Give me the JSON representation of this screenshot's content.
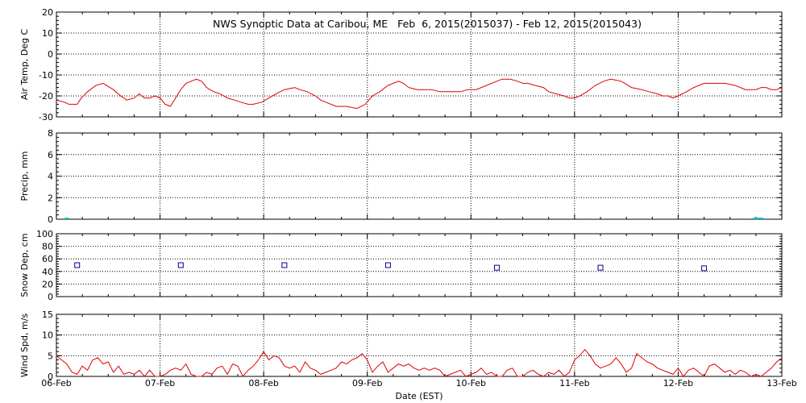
{
  "chart_data": {
    "type": "line",
    "title": "NWS Synoptic Data at Caribou, ME   Feb  6, 2015(2015037) - Feb 12, 2015(2015043)",
    "xlabel": "Date (EST)",
    "x_tick_labels": [
      "06-Feb",
      "07-Feb",
      "08-Feb",
      "09-Feb",
      "10-Feb",
      "11-Feb",
      "12-Feb",
      "13-Feb"
    ],
    "x_range_days": [
      0,
      7
    ],
    "panels": [
      {
        "id": "air-temp",
        "ylabel": "Air Temp, Deg C",
        "ylim": [
          -30,
          20
        ],
        "yticks": [
          "20",
          "10",
          "0",
          "-10",
          "-20",
          "-30"
        ],
        "color": "#e00000",
        "series_type": "line",
        "x": [
          0.0,
          0.08,
          0.12,
          0.2,
          0.24,
          0.3,
          0.38,
          0.45,
          0.55,
          0.62,
          0.68,
          0.75,
          0.8,
          0.85,
          0.9,
          0.95,
          1.0,
          1.05,
          1.1,
          1.15,
          1.2,
          1.25,
          1.3,
          1.35,
          1.4,
          1.45,
          1.48,
          1.52,
          1.58,
          1.65,
          1.72,
          1.78,
          1.85,
          1.9,
          1.98,
          2.05,
          2.12,
          2.2,
          2.3,
          2.35,
          2.42,
          2.5,
          2.55,
          2.6,
          2.7,
          2.8,
          2.9,
          2.98,
          3.05,
          3.12,
          3.2,
          3.3,
          3.35,
          3.4,
          3.48,
          3.55,
          3.62,
          3.7,
          3.8,
          3.9,
          3.97,
          4.05,
          4.15,
          4.25,
          4.3,
          4.38,
          4.45,
          4.5,
          4.55,
          4.62,
          4.7,
          4.75,
          4.82,
          4.9,
          4.95,
          5.0,
          5.05,
          5.12,
          5.2,
          5.28,
          5.35,
          5.45,
          5.55,
          5.65,
          5.72,
          5.8,
          5.85,
          5.9,
          5.95,
          6.0,
          6.08,
          6.15,
          6.2,
          6.25,
          6.3,
          6.38,
          6.45,
          6.55,
          6.65,
          6.75,
          6.8,
          6.85,
          6.9,
          6.95,
          7.0
        ],
        "y": [
          -22,
          -23,
          -24,
          -24,
          -21,
          -18,
          -15,
          -14,
          -17,
          -20,
          -22,
          -21,
          -19,
          -21,
          -21,
          -20,
          -21,
          -24,
          -25,
          -21,
          -17,
          -14,
          -13,
          -12,
          -13,
          -16,
          -17,
          -18,
          -19,
          -21,
          -22,
          -23,
          -24,
          -24,
          -23,
          -21,
          -19,
          -17,
          -16,
          -17,
          -18,
          -20,
          -22,
          -23,
          -25,
          -25,
          -26,
          -24,
          -20,
          -18,
          -15,
          -13,
          -14,
          -16,
          -17,
          -17,
          -17,
          -18,
          -18,
          -18,
          -17,
          -17,
          -15,
          -13,
          -12,
          -12,
          -13,
          -14,
          -14,
          -15,
          -16,
          -18,
          -19,
          -20,
          -21,
          -21,
          -20,
          -18,
          -15,
          -13,
          -12,
          -13,
          -16,
          -17,
          -18,
          -19,
          -20,
          -20,
          -21,
          -20,
          -18,
          -16,
          -15,
          -14,
          -14,
          -14,
          -14,
          -15,
          -17,
          -17,
          -16,
          -16,
          -17,
          -17,
          -16
        ]
      },
      {
        "id": "precip",
        "ylabel": "Precip, mm",
        "ylim": [
          0,
          8
        ],
        "yticks": [
          "8",
          "6",
          "4",
          "2",
          "0"
        ],
        "color": "#00c0c0",
        "series_type": "segments",
        "segments": [
          {
            "x0": 0.08,
            "x1": 0.12,
            "value": 0
          },
          {
            "x0": 6.72,
            "x1": 6.82,
            "value": 0
          }
        ]
      },
      {
        "id": "snow-depth",
        "ylabel": "Snow Dep, cm",
        "ylim": [
          0,
          100
        ],
        "yticks": [
          "100",
          "80",
          "60",
          "40",
          "20",
          "0"
        ],
        "color": "#000090",
        "series_type": "markers",
        "x": [
          0.2,
          1.2,
          2.2,
          3.2,
          4.25,
          5.25,
          6.25
        ],
        "y": [
          50,
          50,
          50,
          50,
          46,
          46,
          45
        ]
      },
      {
        "id": "wind-speed",
        "ylabel": "Wind Spd, m/s",
        "ylim": [
          0,
          15
        ],
        "yticks": [
          "15",
          "10",
          "5",
          "0"
        ],
        "color": "#e00000",
        "series_type": "line",
        "x": [
          0.0,
          0.05,
          0.1,
          0.15,
          0.2,
          0.25,
          0.3,
          0.35,
          0.4,
          0.45,
          0.5,
          0.55,
          0.6,
          0.65,
          0.7,
          0.75,
          0.8,
          0.85,
          0.9,
          0.95,
          1.0,
          1.05,
          1.1,
          1.15,
          1.2,
          1.25,
          1.3,
          1.35,
          1.4,
          1.45,
          1.5,
          1.55,
          1.6,
          1.65,
          1.7,
          1.75,
          1.8,
          1.85,
          1.9,
          1.95,
          2.0,
          2.05,
          2.1,
          2.15,
          2.2,
          2.25,
          2.3,
          2.35,
          2.4,
          2.45,
          2.5,
          2.55,
          2.6,
          2.65,
          2.7,
          2.75,
          2.8,
          2.85,
          2.9,
          2.95,
          3.0,
          3.05,
          3.1,
          3.15,
          3.2,
          3.25,
          3.3,
          3.35,
          3.4,
          3.45,
          3.5,
          3.55,
          3.6,
          3.65,
          3.7,
          3.75,
          3.8,
          3.85,
          3.9,
          3.95,
          4.0,
          4.05,
          4.1,
          4.15,
          4.2,
          4.25,
          4.3,
          4.35,
          4.4,
          4.45,
          4.5,
          4.55,
          4.6,
          4.65,
          4.7,
          4.75,
          4.8,
          4.85,
          4.9,
          4.95,
          5.0,
          5.05,
          5.1,
          5.15,
          5.2,
          5.25,
          5.3,
          5.35,
          5.4,
          5.45,
          5.5,
          5.55,
          5.6,
          5.65,
          5.7,
          5.75,
          5.8,
          5.85,
          5.9,
          5.95,
          6.0,
          6.05,
          6.1,
          6.15,
          6.2,
          6.25,
          6.3,
          6.35,
          6.4,
          6.45,
          6.5,
          6.55,
          6.6,
          6.65,
          6.7,
          6.75,
          6.8,
          6.85,
          6.9,
          6.95,
          7.0
        ],
        "y": [
          5,
          4,
          3,
          1,
          0.5,
          2.5,
          1.5,
          4,
          4.5,
          3,
          3.5,
          1,
          2.5,
          0.5,
          1,
          0.5,
          1.5,
          0,
          1.5,
          0,
          0,
          0.5,
          1.5,
          2,
          1.5,
          3,
          0.5,
          0,
          0,
          1,
          0.5,
          2,
          2.5,
          0.5,
          3,
          2.5,
          0,
          1.5,
          2.5,
          4,
          6,
          4,
          5,
          4.5,
          2.5,
          2,
          2.5,
          1,
          3.5,
          2,
          1.5,
          0.5,
          1,
          1.5,
          2,
          3.5,
          3,
          4,
          4.5,
          5.5,
          4,
          1,
          2.5,
          3.5,
          1,
          2,
          3,
          2.5,
          3,
          2,
          1.5,
          2,
          1.5,
          2,
          1.5,
          0,
          0.5,
          1,
          1.5,
          0,
          0.5,
          1,
          2,
          0.5,
          1,
          0,
          0,
          1.5,
          2,
          0,
          0,
          1,
          1.5,
          0.5,
          0,
          1,
          0.5,
          1.5,
          0,
          1,
          4,
          5,
          6.5,
          5,
          3,
          2,
          2.5,
          3,
          4.5,
          3,
          1,
          2,
          5.5,
          4.5,
          3.5,
          3,
          2,
          1.5,
          1,
          0.5,
          2,
          0,
          1.5,
          2,
          1,
          0,
          2.5,
          3,
          2,
          1,
          1.5,
          0.5,
          1.5,
          1,
          0,
          0.5,
          0,
          1,
          2,
          3.5,
          4.5
        ]
      }
    ]
  }
}
